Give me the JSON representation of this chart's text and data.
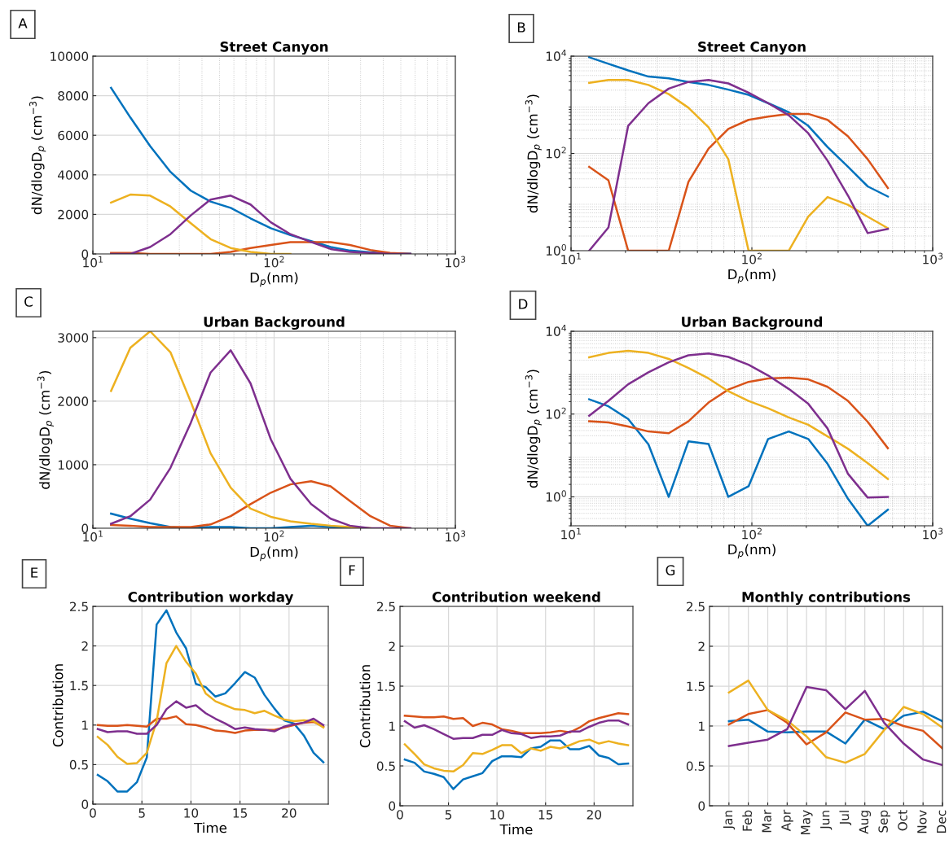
{
  "chart_data": [
    {
      "type": "line",
      "title": "Street Canyon",
      "xlabel": "D$_{p}$(nm)",
      "ylabel": "dN/dlogD$_{p}$ (cm$^{−3}$)",
      "annotations": [
        "A"
      ],
      "log": "x",
      "grid": true,
      "x": [
        12.6,
        16.1,
        20.7,
        26.8,
        34.7,
        44.6,
        57.6,
        74.1,
        95.9,
        123,
        160,
        205,
        262,
        340,
        437,
        565
      ],
      "xlim": [
        10,
        1000
      ],
      "xticks": [
        {
          "value": 10,
          "label": "10$^{1}$"
        },
        {
          "value": 100,
          "label": "10$^{2}$"
        },
        {
          "value": 1000,
          "label": "10$^{3}$"
        }
      ],
      "ylim": [
        0,
        10000
      ],
      "yticks": [
        0,
        2000,
        4000,
        6000,
        8000,
        10000
      ],
      "series": [
        {
          "color": "#0072bd",
          "values": [
            8400,
            6900,
            5450,
            4150,
            3200,
            2650,
            2330,
            1800,
            1300,
            950,
            650,
            350,
            170,
            80,
            30,
            10
          ]
        },
        {
          "color": "#d95319",
          "values": [
            50,
            50,
            0,
            0,
            0,
            0,
            100,
            300,
            450,
            600,
            600,
            600,
            450,
            200,
            50,
            0
          ]
        },
        {
          "color": "#edb120",
          "values": [
            2600,
            3000,
            2950,
            2400,
            1550,
            750,
            300,
            100,
            0,
            0,
            null,
            null,
            null,
            null,
            null,
            null
          ]
        },
        {
          "color": "#7e2f8e",
          "values": [
            0,
            0,
            350,
            1000,
            1950,
            2750,
            2950,
            2500,
            1600,
            1000,
            600,
            250,
            100,
            50,
            0,
            0
          ]
        }
      ]
    },
    {
      "type": "line",
      "title": "Street Canyon",
      "xlabel": "D$_{p}$(nm)",
      "ylabel": "dN/dlogD$_{p}$ (cm$^{−3}$)",
      "annotations": [
        "B"
      ],
      "log": "xy",
      "grid": true,
      "x": [
        12.6,
        16.1,
        20.7,
        26.8,
        34.7,
        44.6,
        57.6,
        74.1,
        95.9,
        123,
        160,
        205,
        262,
        340,
        437,
        565
      ],
      "xlim": [
        10,
        1000
      ],
      "xticks": [
        {
          "value": 10,
          "label": "10$^{1}$"
        },
        {
          "value": 100,
          "label": "10$^{2}$"
        },
        {
          "value": 1000,
          "label": "10$^{3}$"
        }
      ],
      "ylim": [
        1,
        10000
      ],
      "yticks": [
        {
          "value": 1,
          "label": "10$^{0}$"
        },
        {
          "value": 100,
          "label": "10$^{2}$"
        },
        {
          "value": 10000,
          "label": "10$^{4}$"
        }
      ],
      "series": [
        {
          "color": "#0072bd",
          "values": [
            9500,
            6950,
            5100,
            3800,
            3500,
            2950,
            2560,
            2050,
            1600,
            1080,
            700,
            370,
            135,
            53,
            21,
            13
          ]
        },
        {
          "color": "#d95319",
          "values": [
            53,
            28,
            1,
            1,
            1,
            26,
            125,
            320,
            490,
            570,
            650,
            650,
            490,
            225,
            76,
            19.5
          ]
        },
        {
          "color": "#edb120",
          "values": [
            2830,
            3250,
            3250,
            2560,
            1660,
            870,
            345,
            76,
            1,
            1,
            1,
            5,
            12.7,
            8.8,
            5,
            2.9
          ]
        },
        {
          "color": "#7e2f8e",
          "values": [
            1,
            3,
            370,
            1080,
            2150,
            2950,
            3250,
            2750,
            1780,
            1080,
            610,
            260,
            71,
            13.6,
            2.3,
            2.8
          ]
        }
      ]
    },
    {
      "type": "line",
      "title": "Urban Background",
      "xlabel": "D$_{p}$(nm)",
      "ylabel": "dN/dlogD$_{p}$ (cm$^{−3}$)",
      "annotations": [
        "C"
      ],
      "log": "x",
      "grid": true,
      "x": [
        12.6,
        16.1,
        20.7,
        26.8,
        34.7,
        44.6,
        57.6,
        74.1,
        95.9,
        123,
        160,
        205,
        262,
        340,
        437,
        565
      ],
      "xlim": [
        10,
        1000
      ],
      "xticks": [
        {
          "value": 10,
          "label": "10$^{1}$"
        },
        {
          "value": 100,
          "label": "10$^{2}$"
        },
        {
          "value": 1000,
          "label": "10$^{3}$"
        }
      ],
      "ylim": [
        0,
        3100
      ],
      "yticks": [
        0,
        1000,
        2000,
        3000
      ],
      "series": [
        {
          "color": "#0072bd",
          "values": [
            230,
            150,
            80,
            20,
            0,
            20,
            20,
            0,
            0,
            20,
            40,
            20,
            0,
            null,
            null,
            null
          ]
        },
        {
          "color": "#d95319",
          "values": [
            50,
            40,
            20,
            20,
            20,
            60,
            190,
            380,
            560,
            690,
            740,
            660,
            430,
            190,
            40,
            0
          ]
        },
        {
          "color": "#edb120",
          "values": [
            2160,
            2840,
            3100,
            2770,
            1990,
            1180,
            640,
            310,
            180,
            110,
            70,
            40,
            20,
            0,
            null,
            null
          ]
        },
        {
          "color": "#7e2f8e",
          "values": [
            70,
            190,
            450,
            950,
            1660,
            2450,
            2800,
            2280,
            1400,
            780,
            380,
            150,
            40,
            0,
            0,
            0
          ]
        }
      ]
    },
    {
      "type": "line",
      "title": "Urban Background",
      "xlabel": "D$_{p}$(nm)",
      "ylabel": "dN/dlogD$_{p}$ (cm$^{−3}$)",
      "annotations": [
        "D"
      ],
      "log": "xy",
      "grid": true,
      "x": [
        12.6,
        16.1,
        20.7,
        26.8,
        34.7,
        44.6,
        57.6,
        74.1,
        95.9,
        123,
        160,
        205,
        262,
        340,
        437,
        565
      ],
      "xlim": [
        10,
        1000
      ],
      "xticks": [
        {
          "value": 10,
          "label": "10$^{1}$"
        },
        {
          "value": 100,
          "label": "10$^{2}$"
        },
        {
          "value": 1000,
          "label": "10$^{3}$"
        }
      ],
      "ylim": [
        0.2,
        10000
      ],
      "yticks": [
        {
          "value": 1,
          "label": "10$^{0}$"
        },
        {
          "value": 100,
          "label": "10$^{2}$"
        },
        {
          "value": 10000,
          "label": "10$^{4}$"
        }
      ],
      "series": [
        {
          "color": "#0072bd",
          "values": [
            227,
            154,
            76,
            18.5,
            1,
            22,
            19,
            1,
            1.8,
            25,
            38,
            25,
            6.3,
            0.9,
            0.2,
            0.49
          ]
        },
        {
          "color": "#d95319",
          "values": [
            67,
            63,
            50,
            38,
            34.5,
            67,
            190,
            390,
            600,
            725,
            760,
            690,
            455,
            208,
            65,
            15
          ]
        },
        {
          "color": "#edb120",
          "values": [
            2350,
            3000,
            3380,
            3000,
            2150,
            1300,
            725,
            355,
            208,
            138,
            83,
            55,
            29,
            14.5,
            6.5,
            2.7
          ]
        },
        {
          "color": "#7e2f8e",
          "values": [
            91,
            208,
            525,
            1020,
            1780,
            2630,
            2900,
            2400,
            1550,
            855,
            405,
            177,
            45,
            3.6,
            0.96,
            1
          ]
        }
      ]
    },
    {
      "type": "line",
      "title": "Contribution workday",
      "xlabel": "Time",
      "ylabel": "Contribution",
      "annotations": [
        "E"
      ],
      "grid": true,
      "x": [
        0.5,
        1.5,
        2.5,
        3.5,
        4.5,
        5.5,
        6.5,
        7.5,
        8.5,
        9.5,
        10.5,
        11.5,
        12.5,
        13.5,
        14.5,
        15.5,
        16.5,
        17.5,
        18.5,
        19.5,
        20.5,
        21.5,
        22.5,
        23.5
      ],
      "xlim": [
        0,
        24
      ],
      "xticks": [
        0,
        5,
        10,
        15,
        20
      ],
      "ylim": [
        0,
        2.5
      ],
      "yticks": [
        0,
        0.5,
        1,
        1.5,
        2,
        2.5
      ],
      "series": [
        {
          "color": "#0072bd",
          "values": [
            0.37,
            0.29,
            0.16,
            0.16,
            0.28,
            0.59,
            2.27,
            2.45,
            2.17,
            1.97,
            1.52,
            1.48,
            1.36,
            1.4,
            1.53,
            1.67,
            1.6,
            1.38,
            1.21,
            1.06,
            1.02,
            0.87,
            0.65,
            0.53
          ]
        },
        {
          "color": "#d95319",
          "values": [
            1.0,
            0.99,
            0.99,
            1.0,
            0.99,
            0.98,
            1.08,
            1.08,
            1.11,
            1.01,
            1.0,
            0.97,
            0.93,
            0.92,
            0.9,
            0.93,
            0.94,
            0.94,
            0.94,
            0.97,
            1.0,
            1.03,
            1.04,
            0.98
          ]
        },
        {
          "color": "#edb120",
          "values": [
            0.85,
            0.75,
            0.6,
            0.51,
            0.52,
            0.65,
            1.05,
            1.78,
            2.0,
            1.8,
            1.65,
            1.4,
            1.3,
            1.25,
            1.2,
            1.19,
            1.15,
            1.18,
            1.12,
            1.07,
            1.05,
            1.06,
            1.05,
            0.97
          ]
        },
        {
          "color": "#7e2f8e",
          "values": [
            0.95,
            0.91,
            0.92,
            0.92,
            0.89,
            0.89,
            1.0,
            1.2,
            1.3,
            1.22,
            1.25,
            1.15,
            1.08,
            1.02,
            0.95,
            0.97,
            0.95,
            0.94,
            0.92,
            0.98,
            1.01,
            1.03,
            1.08,
            1.0
          ]
        }
      ]
    },
    {
      "type": "line",
      "title": "Contribution weekend",
      "xlabel": "Time",
      "ylabel": "Contribution",
      "annotations": [
        "F"
      ],
      "grid": true,
      "x": [
        0.5,
        1.5,
        2.5,
        3.5,
        4.5,
        5.5,
        6.5,
        7.5,
        8.5,
        9.5,
        10.5,
        11.5,
        12.5,
        13.5,
        14.5,
        15.5,
        16.5,
        17.5,
        18.5,
        19.5,
        20.5,
        21.5,
        22.5,
        23.5
      ],
      "xlim": [
        0,
        24
      ],
      "xticks": [
        0,
        5,
        10,
        15,
        20
      ],
      "ylim": [
        0,
        2.5
      ],
      "yticks": [
        0,
        0.5,
        1,
        1.5,
        2,
        2.5
      ],
      "series": [
        {
          "color": "#0072bd",
          "values": [
            0.58,
            0.54,
            0.43,
            0.4,
            0.36,
            0.21,
            0.33,
            0.37,
            0.41,
            0.56,
            0.62,
            0.62,
            0.61,
            0.72,
            0.74,
            0.82,
            0.82,
            0.71,
            0.71,
            0.75,
            0.63,
            0.6,
            0.52,
            0.53
          ]
        },
        {
          "color": "#d95319",
          "values": [
            1.13,
            1.12,
            1.11,
            1.11,
            1.12,
            1.09,
            1.1,
            1.0,
            1.04,
            1.02,
            0.96,
            0.94,
            0.91,
            0.91,
            0.91,
            0.92,
            0.94,
            0.92,
            0.98,
            1.06,
            1.1,
            1.13,
            1.16,
            1.15
          ]
        },
        {
          "color": "#edb120",
          "values": [
            0.77,
            0.65,
            0.52,
            0.47,
            0.44,
            0.43,
            0.51,
            0.66,
            0.65,
            0.7,
            0.76,
            0.76,
            0.66,
            0.72,
            0.69,
            0.74,
            0.72,
            0.76,
            0.81,
            0.83,
            0.78,
            0.81,
            0.78,
            0.76
          ]
        },
        {
          "color": "#7e2f8e",
          "values": [
            1.06,
            0.98,
            1.01,
            0.96,
            0.9,
            0.84,
            0.85,
            0.85,
            0.89,
            0.89,
            0.95,
            0.91,
            0.9,
            0.85,
            0.87,
            0.87,
            0.88,
            0.93,
            0.93,
            0.99,
            1.04,
            1.07,
            1.07,
            1.02
          ]
        }
      ]
    },
    {
      "type": "line",
      "title": "Monthly contributions",
      "annotations": [
        "G"
      ],
      "grid": true,
      "categories": [
        "Jan",
        "Feb",
        "Mar",
        "Apr",
        "May",
        "Jun",
        "Jul",
        "Aug",
        "Sep",
        "Oct",
        "Nov",
        "Dec"
      ],
      "ylim": [
        0,
        2.5
      ],
      "yticks": [
        0,
        0.5,
        1,
        1.5,
        2,
        2.5
      ],
      "series": [
        {
          "color": "#0072bd",
          "values": [
            1.06,
            1.08,
            0.93,
            0.92,
            0.93,
            0.93,
            0.78,
            1.08,
            0.96,
            1.13,
            1.18,
            1.06
          ]
        },
        {
          "color": "#d95319",
          "values": [
            1.02,
            1.15,
            1.2,
            1.04,
            0.77,
            0.92,
            1.17,
            1.08,
            1.09,
            1.0,
            0.94,
            0.72
          ]
        },
        {
          "color": "#edb120",
          "values": [
            1.42,
            1.57,
            1.2,
            1.07,
            0.87,
            0.61,
            0.54,
            0.65,
            0.95,
            1.24,
            1.15,
            0.98
          ]
        },
        {
          "color": "#7e2f8e",
          "values": [
            0.75,
            0.79,
            0.83,
            0.96,
            1.49,
            1.45,
            1.21,
            1.44,
            1.04,
            0.78,
            0.58,
            0.51
          ]
        }
      ]
    }
  ]
}
